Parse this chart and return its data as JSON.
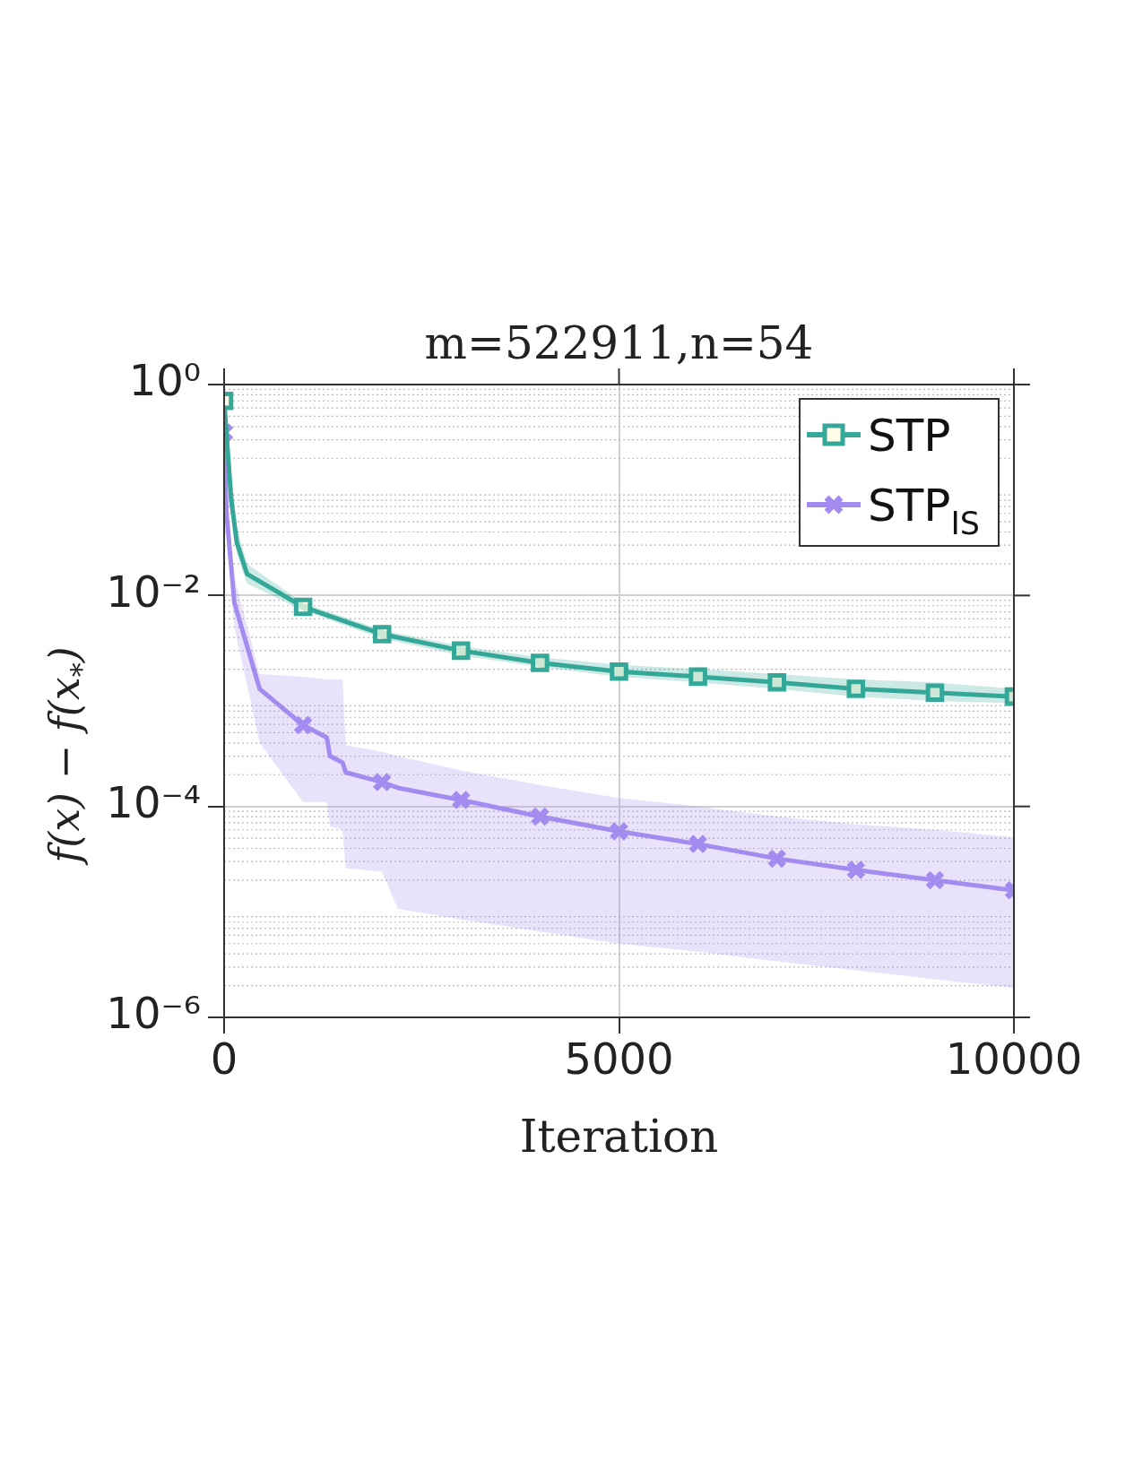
{
  "chart_data": {
    "type": "line",
    "title": "m=522911,n=54",
    "xlabel": "Iteration",
    "ylabel": "f(x) − f(x$_{*}$)",
    "log": "y",
    "grid": true,
    "legend": "top right",
    "xlim": [
      0,
      10000
    ],
    "xticks": [
      0,
      5000,
      10000
    ],
    "ylim": [
      1e-06,
      1
    ],
    "yticks": [
      {
        "value": 1,
        "label": "10⁰"
      },
      {
        "value": 0.01,
        "label": "10⁻²"
      },
      {
        "value": 0.0001,
        "label": "10⁻⁴"
      },
      {
        "value": 1e-06,
        "label": "10⁻⁶"
      }
    ],
    "series": [
      {
        "name": "STP",
        "color": "#35a899",
        "marker": "square",
        "x": [
          0,
          90,
          160,
          290,
          1000,
          2000,
          3000,
          4000,
          5000,
          6000,
          7000,
          8000,
          9000,
          10000
        ],
        "values": [
          0.7,
          0.081,
          0.032,
          0.016,
          0.0078,
          0.0043,
          0.003,
          0.0023,
          0.0019,
          0.0017,
          0.0015,
          0.0013,
          0.0012,
          0.0011
        ],
        "lower": [
          0.7,
          0.06,
          0.025,
          0.013,
          0.0072,
          0.0039,
          0.0027,
          0.0021,
          0.0017,
          0.0015,
          0.0013,
          0.0011,
          0.001,
          0.00095
        ],
        "upper": [
          0.7,
          0.15,
          0.045,
          0.02,
          0.0085,
          0.0047,
          0.0033,
          0.0026,
          0.0022,
          0.002,
          0.0018,
          0.0016,
          0.0015,
          0.0013
        ]
      },
      {
        "name": "STP$_{IS}$",
        "color": "#a48bef",
        "marker": "cross",
        "x": [
          0,
          30,
          130,
          450,
          1000,
          1300,
          1340,
          1500,
          1540,
          2000,
          2200,
          3000,
          4000,
          5000,
          6000,
          7000,
          8000,
          9000,
          10000
        ],
        "values": [
          0.35,
          0.06,
          0.0085,
          0.0013,
          0.00059,
          0.00045,
          0.0003,
          0.00026,
          0.00021,
          0.00017,
          0.00015,
          0.000115,
          8e-05,
          5.8e-05,
          4.4e-05,
          3.2e-05,
          2.5e-05,
          2e-05,
          1.6e-05
        ],
        "lower": [
          0.35,
          0.04,
          0.005,
          0.0004,
          0.00011,
          0.00011,
          6.5e-05,
          6e-05,
          2.6e-05,
          2.4e-05,
          1.07e-05,
          8.5e-06,
          6.5e-06,
          5e-06,
          4.2e-06,
          3.4e-06,
          2.8e-06,
          2.3e-06,
          1.9e-06
        ],
        "upper": [
          0.35,
          0.09,
          0.015,
          0.0018,
          0.0017,
          0.0016,
          0.0016,
          0.0016,
          0.00038,
          0.00033,
          0.0003,
          0.00022,
          0.00016,
          0.00012,
          0.0001,
          8e-05,
          6.8e-05,
          6e-05,
          5.1e-05
        ]
      }
    ]
  }
}
